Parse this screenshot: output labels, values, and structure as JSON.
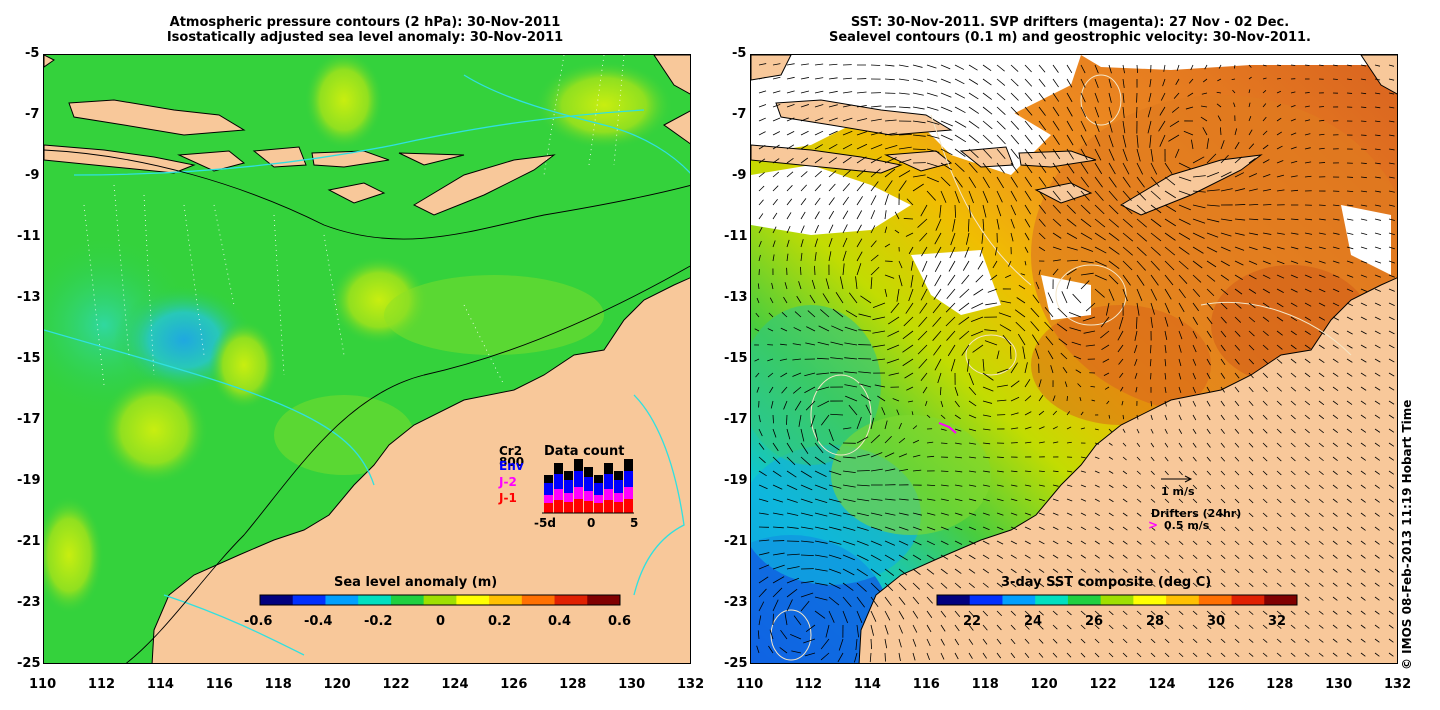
{
  "left_panel": {
    "title_line1": "Atmospheric pressure contours (2 hPa): 30-Nov-2011",
    "title_line2": "Isostatically adjusted sea level anomaly: 30-Nov-2011",
    "colorbar_label": "Sea level anomaly (m)",
    "colorbar_ticks": [
      "-0.6",
      "-0.4",
      "-0.2",
      "0",
      "0.2",
      "0.4",
      "0.6"
    ],
    "colorbar_colors": [
      "#00007f",
      "#0030ff",
      "#00a0ff",
      "#00e0c0",
      "#20d040",
      "#a0e000",
      "#ffff00",
      "#ffc000",
      "#ff7000",
      "#e02000",
      "#800000"
    ],
    "data_count": {
      "title": "Data count",
      "legend": [
        {
          "label": "Cr2",
          "color": "#000000"
        },
        {
          "label": "800",
          "color": "#000000"
        },
        {
          "label": "Env",
          "color": "#0000ff"
        },
        {
          "label": "J-2",
          "color": "#ff00ff"
        },
        {
          "label": "J-1",
          "color": "#ff0000"
        }
      ],
      "x_ticks": [
        "-5d",
        "0",
        "5"
      ]
    }
  },
  "right_panel": {
    "title_line1": "SST: 30-Nov-2011. SVP drifters (magenta): 27 Nov - 02 Dec.",
    "title_line2": "Sealevel contours (0.1 m) and geostrophic velocity: 30-Nov-2011.",
    "colorbar_label": "3-day SST composite (deg C)",
    "colorbar_ticks": [
      "22",
      "24",
      "26",
      "28",
      "30",
      "32"
    ],
    "colorbar_colors": [
      "#00007f",
      "#0030ff",
      "#00a0ff",
      "#00e0c0",
      "#20d040",
      "#a0e000",
      "#ffff00",
      "#ffc000",
      "#ff7000",
      "#e02000",
      "#800000"
    ],
    "velocity_scale_label": "1 m/s",
    "drifters_label": "Drifters (24hr)",
    "drifter_scale_label": "0.5 m/s"
  },
  "axes": {
    "y_ticks": [
      "-5",
      "-7",
      "-9",
      "-11",
      "-13",
      "-15",
      "-17",
      "-19",
      "-21",
      "-23",
      "-25"
    ],
    "x_ticks": [
      "110",
      "112",
      "114",
      "116",
      "118",
      "120",
      "122",
      "124",
      "126",
      "128",
      "130",
      "132"
    ]
  },
  "colors": {
    "land": "#f8c89a",
    "ocean_left": "#30d040",
    "ocean_right": "#e88a20",
    "contour_cyan": "#30e0e0"
  },
  "copyright": "© IMOS 08-Feb-2013 11:19 Hobart Time"
}
